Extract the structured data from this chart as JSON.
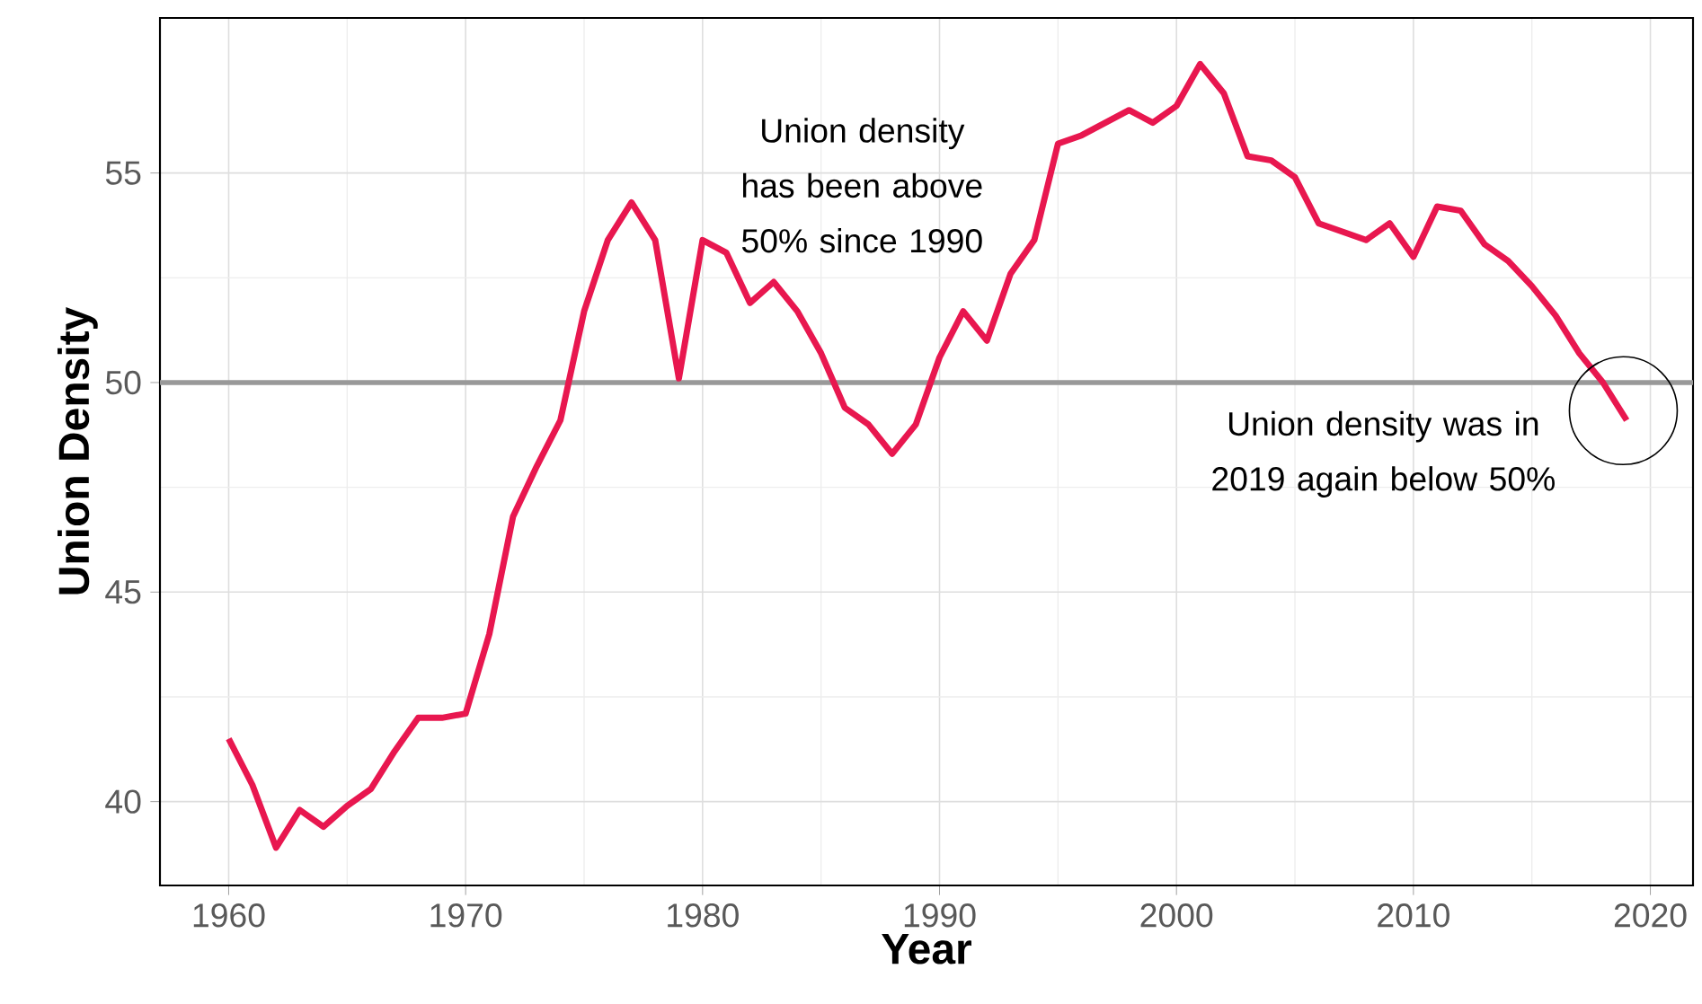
{
  "chart_data": {
    "type": "line",
    "xlabel": "Year",
    "ylabel": "Union Density",
    "x": [
      1960,
      1961,
      1962,
      1963,
      1964,
      1965,
      1966,
      1967,
      1968,
      1969,
      1970,
      1971,
      1972,
      1973,
      1974,
      1975,
      1976,
      1977,
      1978,
      1979,
      1980,
      1981,
      1982,
      1983,
      1984,
      1985,
      1986,
      1987,
      1988,
      1989,
      1990,
      1991,
      1992,
      1993,
      1994,
      1995,
      1996,
      1997,
      1998,
      1999,
      2000,
      2001,
      2002,
      2003,
      2004,
      2005,
      2006,
      2007,
      2008,
      2009,
      2010,
      2011,
      2012,
      2013,
      2014,
      2015,
      2016,
      2017,
      2018,
      2019
    ],
    "series": [
      {
        "color": "#e8174f",
        "values": [
          41.5,
          40.4,
          38.9,
          39.8,
          39.4,
          39.9,
          40.3,
          41.2,
          42.0,
          42.0,
          42.1,
          44.0,
          46.8,
          48.0,
          49.1,
          51.7,
          53.4,
          54.3,
          53.4,
          50.1,
          53.4,
          53.1,
          51.9,
          52.4,
          51.7,
          50.7,
          49.4,
          49.0,
          48.3,
          49.0,
          50.6,
          51.7,
          51.0,
          52.6,
          53.4,
          55.7,
          55.9,
          56.2,
          56.5,
          56.2,
          56.6,
          57.6,
          56.9,
          55.4,
          55.3,
          54.9,
          53.8,
          53.6,
          53.4,
          53.8,
          53.0,
          54.2,
          54.1,
          53.3,
          52.9,
          52.3,
          51.6,
          50.7,
          50.0,
          49.1
        ]
      }
    ],
    "xlim": [
      1957.1,
      2021.8
    ],
    "ylim": [
      38.0,
      58.7
    ],
    "xticks": [
      1960,
      1970,
      1980,
      1990,
      2000,
      2010,
      2020
    ],
    "yticks": [
      40,
      45,
      50,
      55
    ],
    "grid": true,
    "marker": "none",
    "line_style": "solid",
    "ref_lines": [
      {
        "axis": "y",
        "value": 50,
        "color": "#999999"
      }
    ],
    "annotations": [
      "Union density has been above 50% since 1990",
      "Union density was in 2019 again below 50%"
    ]
  }
}
